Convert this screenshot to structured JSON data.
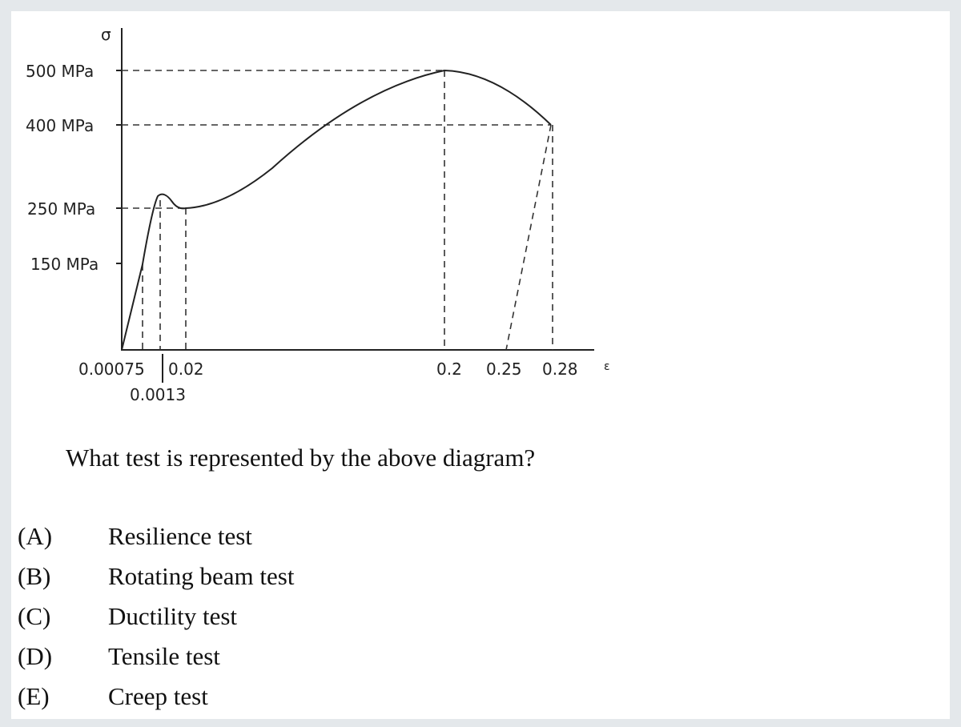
{
  "diagram": {
    "y_axis_label": "σ",
    "y_labels": [
      "500 MPa",
      "400 MPa",
      "250 MPa",
      "150 MPa"
    ],
    "x_axis_label": "ε",
    "x_labels": [
      "0.00075",
      "0.02",
      "0.0013",
      "0.2",
      "0.25",
      "0.28"
    ]
  },
  "question": "What test is represented by the above diagram?",
  "options": [
    {
      "letter": "(A)",
      "text": "Resilience test"
    },
    {
      "letter": "(B)",
      "text": "Rotating beam test"
    },
    {
      "letter": "(C)",
      "text": "Ductility test"
    },
    {
      "letter": "(D)",
      "text": "Tensile test"
    },
    {
      "letter": "(E)",
      "text": "Creep test"
    }
  ]
}
